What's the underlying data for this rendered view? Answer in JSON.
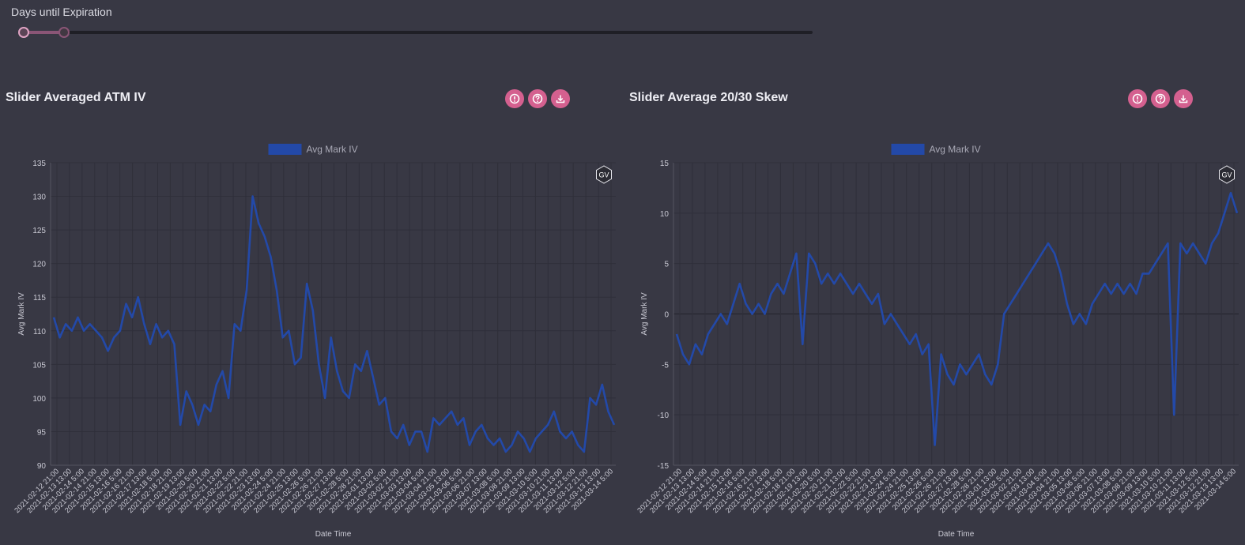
{
  "slider": {
    "label": "Days until Expiration",
    "lower_fraction": 0.0,
    "upper_fraction": 0.051
  },
  "colors": {
    "background": "#383844",
    "accent_pink": "#d4608f",
    "series_blue": "#2349a8",
    "grid": "#2f2f3a"
  },
  "panels": [
    {
      "title": "Slider Averaged ATM IV",
      "icons": [
        "alert-icon",
        "help-icon",
        "download-icon"
      ],
      "watermark": "GV"
    },
    {
      "title": "Slider Average 20/30 Skew",
      "icons": [
        "alert-icon",
        "help-icon",
        "download-icon"
      ],
      "watermark": "GV"
    }
  ],
  "x_tick_labels": [
    "2021-02-12 21:00",
    "2021-02-13 13:00",
    "2021-02-14 5:00",
    "2021-02-14 21:00",
    "2021-02-15 13:00",
    "2021-02-16 5:00",
    "2021-02-16 21:00",
    "2021-02-17 13:00",
    "2021-02-18 5:00",
    "2021-02-18 21:00",
    "2021-02-19 13:00",
    "2021-02-20 5:00",
    "2021-02-20 21:00",
    "2021-02-21 13:00",
    "2021-02-22 5:00",
    "2021-02-22 21:00",
    "2021-02-23 13:00",
    "2021-02-24 5:00",
    "2021-02-24 21:00",
    "2021-02-25 13:00",
    "2021-02-26 5:00",
    "2021-02-26 21:00",
    "2021-02-27 13:00",
    "2021-02-28 5:00",
    "2021-02-28 21:00",
    "2021-03-01 13:00",
    "2021-03-02 5:00",
    "2021-03-02 21:00",
    "2021-03-03 13:00",
    "2021-03-04 5:00",
    "2021-03-04 21:00",
    "2021-03-05 13:00",
    "2021-03-06 5:00",
    "2021-03-06 21:00",
    "2021-03-07 13:00",
    "2021-03-08 5:00",
    "2021-03-08 21:00",
    "2021-03-09 13:00",
    "2021-03-10 5:00",
    "2021-03-10 21:00",
    "2021-03-11 13:00",
    "2021-03-12 5:00",
    "2021-03-12 21:00",
    "2021-03-13 13:00",
    "2021-03-14 5:00"
  ],
  "chart_data": [
    {
      "type": "line",
      "legend": "Avg Mark IV",
      "xlabel": "Date Time",
      "ylabel": "Avg Mark IV",
      "ylim": [
        90,
        135
      ],
      "yticks": [
        90,
        95,
        100,
        105,
        110,
        115,
        120,
        125,
        130,
        135
      ],
      "grid": true,
      "legend_position": "top-center",
      "series": [
        {
          "name": "Avg Mark IV",
          "points": [
            [
              0,
              112
            ],
            [
              1,
              109
            ],
            [
              2,
              111
            ],
            [
              3,
              110
            ],
            [
              4,
              112
            ],
            [
              5,
              110
            ],
            [
              6,
              111
            ],
            [
              7,
              110
            ],
            [
              8,
              109
            ],
            [
              9,
              107
            ],
            [
              10,
              109
            ],
            [
              11,
              110
            ],
            [
              12,
              114
            ],
            [
              13,
              112
            ],
            [
              14,
              115
            ],
            [
              15,
              111
            ],
            [
              16,
              108
            ],
            [
              17,
              111
            ],
            [
              18,
              109
            ],
            [
              19,
              110
            ],
            [
              20,
              108
            ],
            [
              21,
              96
            ],
            [
              22,
              101
            ],
            [
              23,
              99
            ],
            [
              24,
              96
            ],
            [
              25,
              99
            ],
            [
              26,
              98
            ],
            [
              27,
              102
            ],
            [
              28,
              104
            ],
            [
              29,
              100
            ],
            [
              30,
              111
            ],
            [
              31,
              110
            ],
            [
              32,
              116
            ],
            [
              33,
              130
            ],
            [
              34,
              126
            ],
            [
              35,
              124
            ],
            [
              36,
              121
            ],
            [
              37,
              116
            ],
            [
              38,
              109
            ],
            [
              39,
              110
            ],
            [
              40,
              105
            ],
            [
              41,
              106
            ],
            [
              42,
              117
            ],
            [
              43,
              113
            ],
            [
              44,
              105
            ],
            [
              45,
              100
            ],
            [
              46,
              109
            ],
            [
              47,
              104
            ],
            [
              48,
              101
            ],
            [
              49,
              100
            ],
            [
              50,
              105
            ],
            [
              51,
              104
            ],
            [
              52,
              107
            ],
            [
              53,
              103
            ],
            [
              54,
              99
            ],
            [
              55,
              100
            ],
            [
              56,
              95
            ],
            [
              57,
              94
            ],
            [
              58,
              96
            ],
            [
              59,
              93
            ],
            [
              60,
              95
            ],
            [
              61,
              95
            ],
            [
              62,
              92
            ],
            [
              63,
              97
            ],
            [
              64,
              96
            ],
            [
              65,
              97
            ],
            [
              66,
              98
            ],
            [
              67,
              96
            ],
            [
              68,
              97
            ],
            [
              69,
              93
            ],
            [
              70,
              95
            ],
            [
              71,
              96
            ],
            [
              72,
              94
            ],
            [
              73,
              93
            ],
            [
              74,
              94
            ],
            [
              75,
              92
            ],
            [
              76,
              93
            ],
            [
              77,
              95
            ],
            [
              78,
              94
            ],
            [
              79,
              92
            ],
            [
              80,
              94
            ],
            [
              81,
              95
            ],
            [
              82,
              96
            ],
            [
              83,
              98
            ],
            [
              84,
              95
            ],
            [
              85,
              94
            ],
            [
              86,
              95
            ],
            [
              87,
              93
            ],
            [
              88,
              92
            ],
            [
              89,
              100
            ],
            [
              90,
              99
            ],
            [
              91,
              102
            ],
            [
              92,
              98
            ],
            [
              93,
              96
            ]
          ]
        }
      ]
    },
    {
      "type": "line",
      "legend": "Avg Mark IV",
      "xlabel": "Date Time",
      "ylabel": "Avg Mark IV",
      "ylim": [
        -15,
        15
      ],
      "yticks": [
        -15,
        -10,
        -5,
        0,
        5,
        10,
        15
      ],
      "grid": true,
      "legend_position": "top-center",
      "series": [
        {
          "name": "Avg Mark IV",
          "points": [
            [
              0,
              -2
            ],
            [
              1,
              -4
            ],
            [
              2,
              -5
            ],
            [
              3,
              -3
            ],
            [
              4,
              -4
            ],
            [
              5,
              -2
            ],
            [
              6,
              -1
            ],
            [
              7,
              0
            ],
            [
              8,
              -1
            ],
            [
              9,
              1
            ],
            [
              10,
              3
            ],
            [
              11,
              1
            ],
            [
              12,
              0
            ],
            [
              13,
              1
            ],
            [
              14,
              0
            ],
            [
              15,
              2
            ],
            [
              16,
              3
            ],
            [
              17,
              2
            ],
            [
              18,
              4
            ],
            [
              19,
              6
            ],
            [
              20,
              -3
            ],
            [
              21,
              6
            ],
            [
              22,
              5
            ],
            [
              23,
              3
            ],
            [
              24,
              4
            ],
            [
              25,
              3
            ],
            [
              26,
              4
            ],
            [
              27,
              3
            ],
            [
              28,
              2
            ],
            [
              29,
              3
            ],
            [
              30,
              2
            ],
            [
              31,
              1
            ],
            [
              32,
              2
            ],
            [
              33,
              -1
            ],
            [
              34,
              0
            ],
            [
              35,
              -1
            ],
            [
              36,
              -2
            ],
            [
              37,
              -3
            ],
            [
              38,
              -2
            ],
            [
              39,
              -4
            ],
            [
              40,
              -3
            ],
            [
              41,
              -13
            ],
            [
              42,
              -4
            ],
            [
              43,
              -6
            ],
            [
              44,
              -7
            ],
            [
              45,
              -5
            ],
            [
              46,
              -6
            ],
            [
              47,
              -5
            ],
            [
              48,
              -4
            ],
            [
              49,
              -6
            ],
            [
              50,
              -7
            ],
            [
              51,
              -5
            ],
            [
              52,
              0
            ],
            [
              53,
              1
            ],
            [
              54,
              2
            ],
            [
              55,
              3
            ],
            [
              56,
              4
            ],
            [
              57,
              5
            ],
            [
              58,
              6
            ],
            [
              59,
              7
            ],
            [
              60,
              6
            ],
            [
              61,
              4
            ],
            [
              62,
              1
            ],
            [
              63,
              -1
            ],
            [
              64,
              0
            ],
            [
              65,
              -1
            ],
            [
              66,
              1
            ],
            [
              67,
              2
            ],
            [
              68,
              3
            ],
            [
              69,
              2
            ],
            [
              70,
              3
            ],
            [
              71,
              2
            ],
            [
              72,
              3
            ],
            [
              73,
              2
            ],
            [
              74,
              4
            ],
            [
              75,
              4
            ],
            [
              76,
              5
            ],
            [
              77,
              6
            ],
            [
              78,
              7
            ],
            [
              79,
              -10
            ],
            [
              80,
              7
            ],
            [
              81,
              6
            ],
            [
              82,
              7
            ],
            [
              83,
              6
            ],
            [
              84,
              5
            ],
            [
              85,
              7
            ],
            [
              86,
              8
            ],
            [
              87,
              10
            ],
            [
              88,
              12
            ],
            [
              89,
              10
            ]
          ]
        }
      ]
    }
  ]
}
